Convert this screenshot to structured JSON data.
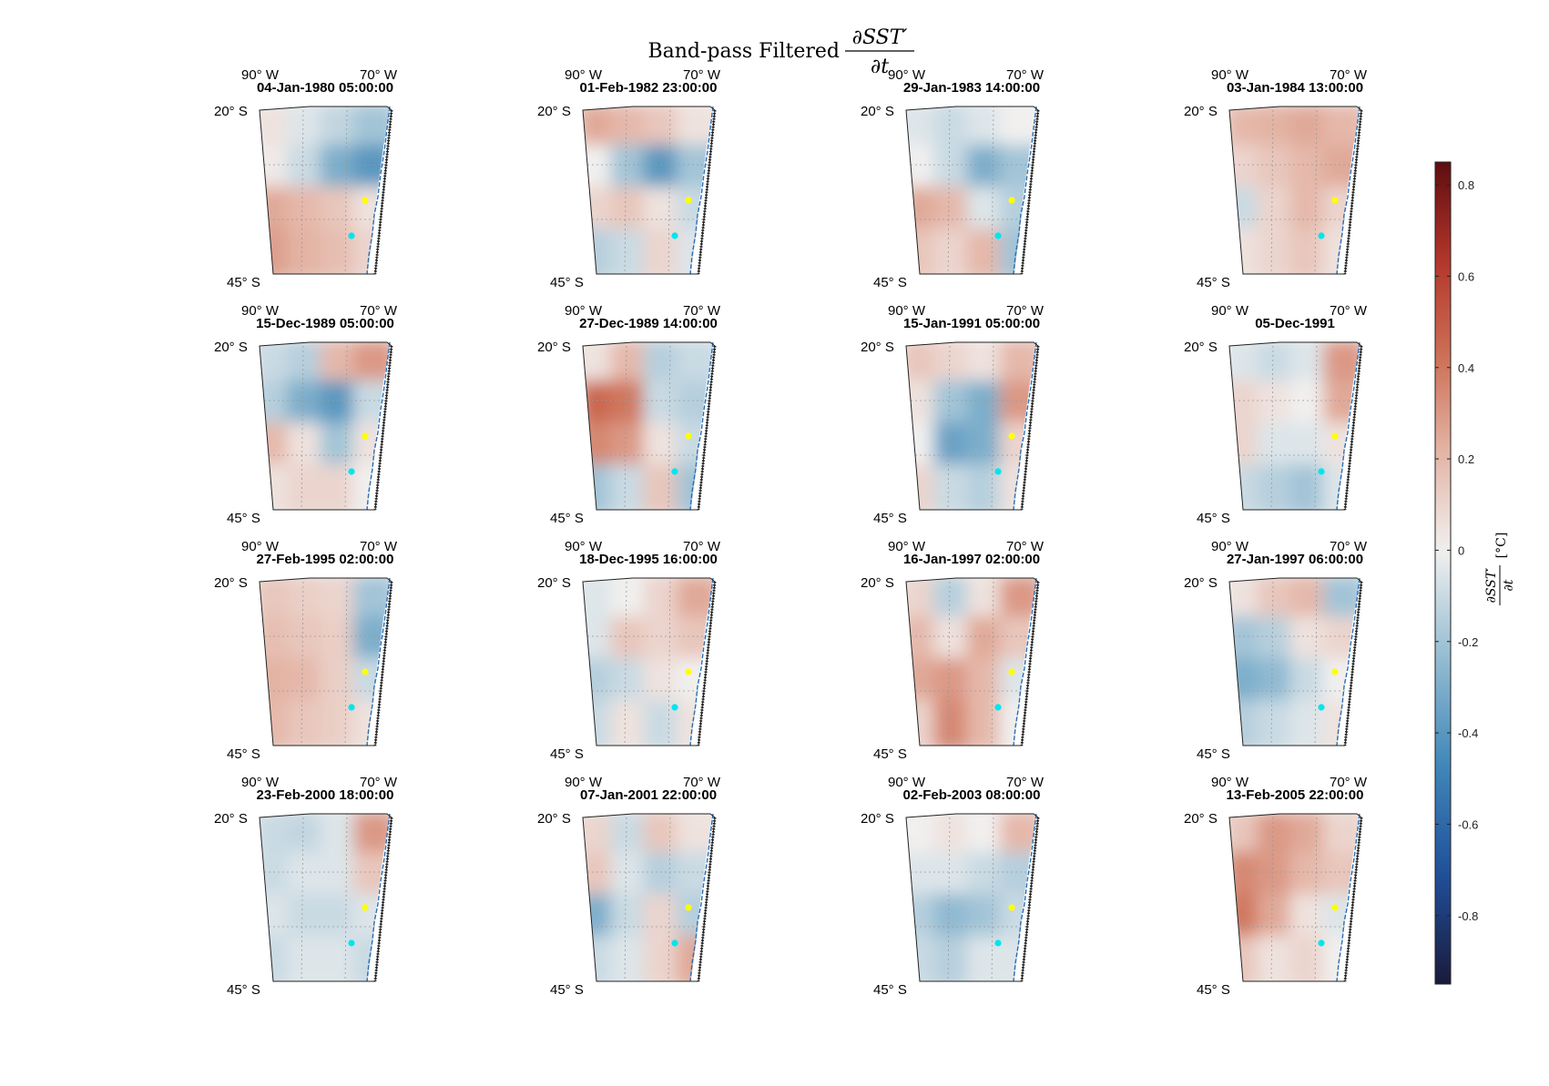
{
  "figure": {
    "title_prefix": "Band-pass Filtered",
    "title_numerator": "∂SST′",
    "title_denominator": "∂t"
  },
  "map_labels": {
    "lon_west": "90° W",
    "lon_east": "70° W",
    "lat_north": "20° S",
    "lat_south": "45° S"
  },
  "colorbar": {
    "label_numerator": "∂SST′",
    "label_denominator": "∂t",
    "label_unit": "[°C]",
    "ticks": [
      0.8,
      0.6,
      0.4,
      0.2,
      0,
      -0.2,
      -0.4,
      -0.6,
      -0.8
    ],
    "tick_labels": [
      "0.8",
      "0.6",
      "0.4",
      "0.2",
      "0",
      "-0.2",
      "-0.4",
      "-0.6",
      "-0.8"
    ],
    "vmin": -0.95,
    "vmax": 0.85,
    "colormap": [
      "#1a1a3a",
      "#1f4f9a",
      "#3f86b8",
      "#93bcd2",
      "#f1f0ef",
      "#e4b5a6",
      "#cd6f55",
      "#b2352a",
      "#5f0d10"
    ]
  },
  "colors": {
    "marker_north": "#ffff00",
    "marker_south": "#00e5ee",
    "coastline": "#2a6fb5"
  },
  "chart_data": {
    "type": "heatmap",
    "description_source": "16 map panels, each titled with a date-time",
    "panels": [
      {
        "title": "04-Jan-1980 05:00:00",
        "pattern": [
          [
            0.05,
            -0.05,
            -0.12,
            -0.2
          ],
          [
            0.02,
            -0.1,
            -0.3,
            -0.4
          ],
          [
            0.25,
            0.2,
            0.15,
            0.05
          ],
          [
            0.28,
            0.22,
            0.18,
            0.1
          ]
        ]
      },
      {
        "title": "01-Feb-1982 23:00:00",
        "pattern": [
          [
            0.25,
            0.2,
            0.15,
            0.05
          ],
          [
            0.0,
            -0.2,
            -0.4,
            -0.2
          ],
          [
            0.1,
            0.15,
            0.05,
            -0.1
          ],
          [
            -0.15,
            -0.1,
            0.1,
            -0.05
          ]
        ]
      },
      {
        "title": "29-Jan-1983 14:00:00",
        "pattern": [
          [
            -0.05,
            -0.1,
            -0.05,
            0.0
          ],
          [
            0.0,
            -0.1,
            -0.3,
            -0.2
          ],
          [
            0.25,
            0.2,
            -0.05,
            -0.15
          ],
          [
            0.15,
            0.1,
            0.2,
            -0.2
          ]
        ]
      },
      {
        "title": "03-Jan-1984 13:00:00",
        "pattern": [
          [
            0.2,
            0.22,
            0.25,
            0.2
          ],
          [
            0.1,
            0.15,
            0.2,
            0.25
          ],
          [
            -0.1,
            0.1,
            0.2,
            0.1
          ],
          [
            0.05,
            0.1,
            0.15,
            0.05
          ]
        ]
      },
      {
        "title": "15-Dec-1989 05:00:00",
        "pattern": [
          [
            -0.1,
            -0.15,
            0.2,
            0.3
          ],
          [
            -0.15,
            -0.3,
            -0.4,
            -0.1
          ],
          [
            0.2,
            0.05,
            -0.2,
            0.05
          ],
          [
            0.05,
            0.1,
            0.1,
            0.0
          ]
        ]
      },
      {
        "title": "27-Dec-1989 14:00:00",
        "pattern": [
          [
            0.05,
            0.2,
            -0.15,
            -0.1
          ],
          [
            0.45,
            0.4,
            -0.1,
            -0.15
          ],
          [
            0.35,
            0.3,
            0.05,
            -0.1
          ],
          [
            -0.2,
            -0.1,
            0.15,
            -0.2
          ]
        ]
      },
      {
        "title": "15-Jan-1991 05:00:00",
        "pattern": [
          [
            0.15,
            0.1,
            0.05,
            0.2
          ],
          [
            0.05,
            -0.2,
            -0.3,
            0.3
          ],
          [
            0.0,
            -0.35,
            -0.3,
            0.1
          ],
          [
            0.1,
            -0.1,
            -0.15,
            0.05
          ]
        ]
      },
      {
        "title": "05-Dec-1991",
        "pattern": [
          [
            -0.05,
            -0.1,
            -0.05,
            0.3
          ],
          [
            0.1,
            0.05,
            0.0,
            0.25
          ],
          [
            0.1,
            -0.05,
            -0.05,
            0.05
          ],
          [
            -0.1,
            -0.15,
            -0.2,
            -0.05
          ]
        ]
      },
      {
        "title": "27-Feb-1995 02:00:00",
        "pattern": [
          [
            0.15,
            0.12,
            0.1,
            -0.2
          ],
          [
            0.18,
            0.15,
            0.12,
            -0.3
          ],
          [
            0.22,
            0.2,
            0.12,
            -0.1
          ],
          [
            0.2,
            0.15,
            0.12,
            0.05
          ]
        ]
      },
      {
        "title": "18-Dec-1995 16:00:00",
        "pattern": [
          [
            -0.05,
            0.0,
            0.1,
            0.25
          ],
          [
            -0.05,
            0.15,
            0.1,
            0.15
          ],
          [
            -0.15,
            -0.1,
            0.05,
            0.0
          ],
          [
            -0.1,
            0.05,
            -0.1,
            0.05
          ]
        ]
      },
      {
        "title": "16-Jan-1997 02:00:00",
        "pattern": [
          [
            0.1,
            -0.15,
            0.05,
            0.3
          ],
          [
            0.2,
            0.05,
            0.25,
            0.15
          ],
          [
            0.25,
            0.3,
            0.2,
            -0.05
          ],
          [
            0.1,
            0.35,
            0.2,
            0.0
          ]
        ]
      },
      {
        "title": "27-Jan-1997 06:00:00",
        "pattern": [
          [
            0.05,
            0.15,
            0.2,
            -0.2
          ],
          [
            -0.2,
            -0.15,
            0.05,
            0.1
          ],
          [
            -0.3,
            -0.25,
            -0.1,
            0.0
          ],
          [
            -0.15,
            -0.1,
            -0.05,
            0.05
          ]
        ]
      },
      {
        "title": "23-Feb-2000 18:00:00",
        "pattern": [
          [
            -0.1,
            -0.12,
            -0.05,
            0.3
          ],
          [
            -0.1,
            -0.05,
            -0.05,
            0.15
          ],
          [
            -0.05,
            -0.1,
            -0.1,
            -0.05
          ],
          [
            -0.1,
            -0.05,
            -0.05,
            -0.1
          ]
        ]
      },
      {
        "title": "07-Jan-2001 22:00:00",
        "pattern": [
          [
            0.1,
            -0.1,
            0.15,
            0.05
          ],
          [
            0.15,
            -0.05,
            -0.15,
            -0.1
          ],
          [
            -0.3,
            -0.1,
            0.1,
            -0.15
          ],
          [
            -0.1,
            -0.05,
            0.1,
            0.25
          ]
        ]
      },
      {
        "title": "02-Feb-2003 08:00:00",
        "pattern": [
          [
            0.0,
            0.05,
            0.0,
            0.2
          ],
          [
            -0.05,
            -0.05,
            -0.1,
            -0.15
          ],
          [
            -0.15,
            -0.25,
            -0.2,
            -0.1
          ],
          [
            -0.1,
            -0.15,
            -0.05,
            -0.05
          ]
        ]
      },
      {
        "title": "13-Feb-2005 22:00:00",
        "pattern": [
          [
            0.15,
            0.3,
            0.25,
            0.1
          ],
          [
            0.35,
            0.3,
            0.2,
            0.15
          ],
          [
            0.4,
            0.25,
            0.05,
            -0.05
          ],
          [
            0.15,
            0.05,
            0.1,
            0.0
          ]
        ]
      }
    ]
  }
}
